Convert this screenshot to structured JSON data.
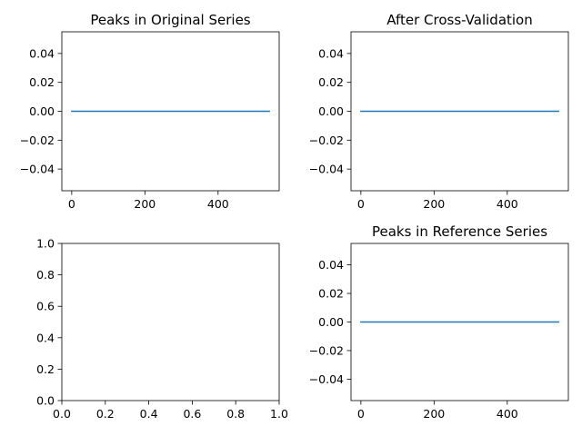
{
  "chart_data": [
    {
      "type": "line",
      "title": "Peaks in Original Series",
      "xlabel": "",
      "ylabel": "",
      "xlim": [
        -27,
        567
      ],
      "ylim": [
        -0.055,
        0.055
      ],
      "xticks": [
        0,
        200,
        400
      ],
      "xtick_labels": [
        "0",
        "200",
        "400"
      ],
      "yticks": [
        0.04,
        0.02,
        0.0,
        -0.02,
        -0.04
      ],
      "ytick_labels": [
        "0.04",
        "0.02",
        "0.00",
        "−0.02",
        "−0.04"
      ],
      "grid": false,
      "series": [
        {
          "color": "#1f77b4",
          "x": [
            0,
            540
          ],
          "y": [
            0,
            0
          ]
        }
      ]
    },
    {
      "type": "line",
      "title": "After Cross-Validation",
      "xlabel": "",
      "ylabel": "",
      "xlim": [
        -27,
        567
      ],
      "ylim": [
        -0.055,
        0.055
      ],
      "xticks": [
        0,
        200,
        400
      ],
      "xtick_labels": [
        "0",
        "200",
        "400"
      ],
      "yticks": [
        0.04,
        0.02,
        0.0,
        -0.02,
        -0.04
      ],
      "ytick_labels": [
        "0.04",
        "0.02",
        "0.00",
        "−0.02",
        "−0.04"
      ],
      "grid": false,
      "series": [
        {
          "color": "#1f77b4",
          "x": [
            0,
            540
          ],
          "y": [
            0,
            0
          ]
        }
      ]
    },
    {
      "type": "line",
      "title": "",
      "xlabel": "",
      "ylabel": "",
      "xlim": [
        0,
        1
      ],
      "ylim": [
        0,
        1
      ],
      "xticks": [
        0.0,
        0.2,
        0.4,
        0.6,
        0.8,
        1.0
      ],
      "xtick_labels": [
        "0.0",
        "0.2",
        "0.4",
        "0.6",
        "0.8",
        "1.0"
      ],
      "yticks": [
        1.0,
        0.8,
        0.6,
        0.4,
        0.2,
        0.0
      ],
      "ytick_labels": [
        "1.0",
        "0.8",
        "0.6",
        "0.4",
        "0.2",
        "0.0"
      ],
      "grid": false,
      "series": []
    },
    {
      "type": "line",
      "title": "Peaks in Reference Series",
      "xlabel": "",
      "ylabel": "",
      "xlim": [
        -27,
        567
      ],
      "ylim": [
        -0.055,
        0.055
      ],
      "xticks": [
        0,
        200,
        400
      ],
      "xtick_labels": [
        "0",
        "200",
        "400"
      ],
      "yticks": [
        0.04,
        0.02,
        0.0,
        -0.02,
        -0.04
      ],
      "ytick_labels": [
        "0.04",
        "0.02",
        "0.00",
        "−0.02",
        "−0.04"
      ],
      "grid": false,
      "series": [
        {
          "color": "#1f77b4",
          "x": [
            0,
            540
          ],
          "y": [
            0,
            0
          ]
        }
      ]
    }
  ]
}
